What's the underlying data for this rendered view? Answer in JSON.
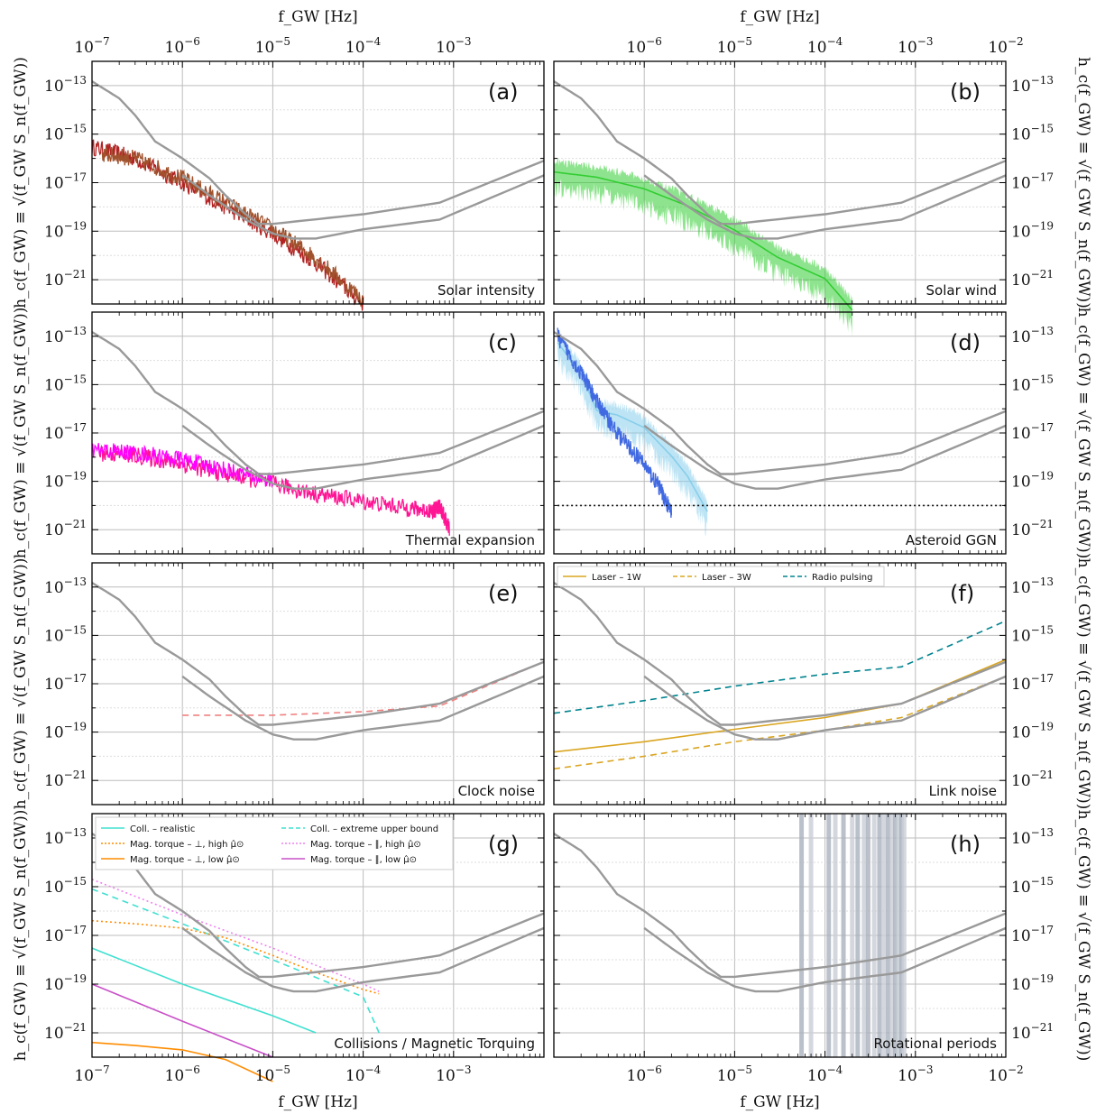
{
  "figure": {
    "top_axis_label": "f_GW [Hz]",
    "bottom_axis_label": "f_GW [Hz]",
    "left_axis_label": "h_c(f_GW) ≡ √(f_GW S_n(f_GW))",
    "right_axis_label": "h_c(f_GW) ≡ √(f_GW S_n(f_GW))",
    "left_xticks": [
      "10^-7",
      "10^-6",
      "10^-5",
      "10^-4",
      "10^-3"
    ],
    "right_xticks": [
      "10^-6",
      "10^-5",
      "10^-4",
      "10^-3",
      "10^-2"
    ],
    "yticks": [
      "10^-13",
      "10^-15",
      "10^-17",
      "10^-19",
      "10^-21"
    ]
  },
  "chart_data": [
    {
      "panel": "(a)",
      "name": "Solar intensity",
      "type": "line",
      "xlim": [
        1e-07,
        0.01
      ],
      "ylim": [
        1e-22,
        1e-12
      ],
      "xscale": "log",
      "yscale": "log",
      "grid": true,
      "series": [
        {
          "color": "#b22222",
          "style": "noisy",
          "x": [
            1e-07,
            3e-07,
            1e-06,
            3e-06,
            1e-05,
            3e-05,
            0.0001
          ],
          "y": [
            3e-16,
            1e-16,
            1e-17,
            1e-18,
            8e-20,
            5e-21,
            1e-22
          ]
        },
        {
          "color": "#a0522d",
          "style": "noisy",
          "x": [
            1.3e-07,
            3e-07,
            1e-06,
            3e-06,
            1e-05,
            3e-05,
            0.0001
          ],
          "y": [
            1.5e-16,
            1e-16,
            1.5e-17,
            1.5e-18,
            1.2e-19,
            8e-21,
            1.5e-22
          ]
        }
      ]
    },
    {
      "panel": "(b)",
      "name": "Solar wind",
      "type": "area",
      "xlim": [
        1e-07,
        0.01
      ],
      "ylim": [
        1e-22,
        1e-12
      ],
      "xscale": "log",
      "yscale": "log",
      "grid": true,
      "series": [
        {
          "color": "#32cd32",
          "style": "band",
          "x": [
            1e-07,
            3e-07,
            1e-06,
            3e-06,
            1e-05,
            3e-05,
            0.0001,
            0.0002
          ],
          "y": [
            5e-17,
            3e-17,
            1e-17,
            2e-18,
            2e-19,
            1.5e-20,
            2e-21,
            1e-22
          ]
        }
      ]
    },
    {
      "panel": "(c)",
      "name": "Thermal expansion",
      "type": "line",
      "xlim": [
        1e-07,
        0.01
      ],
      "ylim": [
        1e-22,
        1e-12
      ],
      "xscale": "log",
      "yscale": "log",
      "grid": true,
      "series": [
        {
          "color": "#ff1493",
          "style": "noisy",
          "x": [
            1.2e-07,
            3e-07,
            1e-06,
            3e-06,
            1e-05,
            3e-05,
            0.0001,
            0.0003,
            0.0006,
            0.0007,
            0.0009
          ],
          "y": [
            1.5e-18,
            1.2e-18,
            5e-19,
            2e-19,
            8e-20,
            3e-20,
            1.5e-20,
            8e-21,
            6e-21,
            1e-20,
            1e-21
          ]
        },
        {
          "color": "#ff00ff",
          "style": "noisy",
          "x": [
            1e-07,
            3e-07,
            1e-06,
            3e-06,
            1e-05
          ],
          "y": [
            2e-18,
            1.5e-18,
            8e-19,
            3e-19,
            1e-19
          ]
        }
      ]
    },
    {
      "panel": "(d)",
      "name": "Asteroid GGN",
      "type": "area",
      "xlim": [
        1e-07,
        0.01
      ],
      "ylim": [
        1e-22,
        1e-12
      ],
      "xscale": "log",
      "yscale": "log",
      "grid": true,
      "series": [
        {
          "color": "#87ceeb",
          "style": "band",
          "x": [
            1.1e-07,
            2e-07,
            3e-07,
            5e-07,
            1e-06,
            2e-06,
            3e-06,
            5e-06
          ],
          "y": [
            1e-13,
            5e-15,
            1.5e-16,
            1e-16,
            3e-17,
            2e-18,
            3e-19,
            1e-20
          ]
        },
        {
          "color": "#4169e1",
          "style": "noisy",
          "x": [
            1.1e-07,
            2e-07,
            3e-07,
            5e-07,
            1e-06,
            1.5e-06,
            2e-06
          ],
          "y": [
            1e-13,
            3e-15,
            2e-16,
            1e-17,
            5e-19,
            5e-20,
            5e-21
          ]
        },
        {
          "color": "#111111",
          "style": "dotted",
          "x": [
            1.1e-07,
            0.01
          ],
          "y": [
            1e-20,
            1e-20
          ]
        }
      ]
    },
    {
      "panel": "(e)",
      "name": "Clock noise",
      "type": "line",
      "xlim": [
        1e-07,
        0.01
      ],
      "ylim": [
        1e-22,
        1e-12
      ],
      "xscale": "log",
      "yscale": "log",
      "grid": true,
      "series": [
        {
          "color": "#f08080",
          "style": "dashed",
          "x": [
            1e-06,
            1e-05,
            0.0001,
            0.0007,
            0.01
          ],
          "y": [
            5e-19,
            5e-19,
            7e-19,
            1.2e-18,
            8e-17
          ]
        }
      ]
    },
    {
      "panel": "(f)",
      "name": "Link noise",
      "type": "line",
      "xlim": [
        1e-07,
        0.01
      ],
      "ylim": [
        1e-22,
        1e-12
      ],
      "xscale": "log",
      "yscale": "log",
      "grid": true,
      "legend": "top",
      "series": [
        {
          "name": "Laser – 1W",
          "color": "#daa520",
          "style": "solid",
          "x": [
            1e-07,
            1e-06,
            1e-05,
            0.0001,
            0.0007,
            0.01
          ],
          "y": [
            1.5e-20,
            4e-20,
            1.3e-19,
            4e-19,
            1.5e-18,
            1e-16
          ]
        },
        {
          "name": "Laser – 3W",
          "color": "#daa520",
          "style": "dashed",
          "x": [
            1e-07,
            1e-06,
            1e-05,
            0.0001,
            0.0007,
            0.01
          ],
          "y": [
            3e-21,
            1e-20,
            4e-20,
            1.2e-19,
            4e-19,
            2e-17
          ]
        },
        {
          "name": "Radio pulsing",
          "color": "#00838f",
          "style": "dashed",
          "x": [
            1e-07,
            1e-06,
            1e-05,
            0.0001,
            0.0007,
            0.01
          ],
          "y": [
            6e-19,
            2e-18,
            8e-18,
            2.5e-17,
            5e-17,
            4e-15
          ]
        }
      ]
    },
    {
      "panel": "(g)",
      "name": "Collisions / Magnetic Torquing",
      "type": "line",
      "xlim": [
        1e-07,
        0.01
      ],
      "ylim": [
        1e-22,
        1e-12
      ],
      "xscale": "log",
      "yscale": "log",
      "grid": true,
      "legend": "top-left",
      "series": [
        {
          "name": "Coll. – realistic",
          "color": "#40e0d0",
          "style": "solid",
          "x": [
            1e-07,
            1e-06,
            1e-05,
            3e-05
          ],
          "y": [
            3e-18,
            1e-19,
            5e-21,
            1e-21
          ]
        },
        {
          "name": "Coll. – extreme upper bound",
          "color": "#40e0d0",
          "style": "dashed",
          "x": [
            1e-07,
            1e-06,
            1e-05,
            0.0001,
            0.00015
          ],
          "y": [
            8e-16,
            3e-17,
            1e-18,
            3e-20,
            1e-21
          ]
        },
        {
          "name": "Mag. torque – ⊥, high μ̂⊙",
          "color": "#ff8c00",
          "style": "dotted",
          "x": [
            1e-07,
            3e-07,
            1e-06,
            3e-06,
            1e-05,
            3e-05,
            0.0001,
            0.00015
          ],
          "y": [
            4e-17,
            3e-17,
            2e-17,
            8e-18,
            1.5e-18,
            3e-19,
            6e-20,
            4e-20
          ]
        },
        {
          "name": "Mag. torque – ∥, high μ̂⊙",
          "color": "#ee82ee",
          "style": "dotted",
          "x": [
            1e-07,
            1e-06,
            1e-05,
            0.0001,
            0.00015
          ],
          "y": [
            2e-15,
            7e-17,
            3e-18,
            1e-19,
            5e-20
          ]
        },
        {
          "name": "Mag. torque – ⊥, low μ̂⊙",
          "color": "#ff8c00",
          "style": "solid",
          "x": [
            1e-07,
            3e-07,
            1e-06,
            3e-06,
            1e-05
          ],
          "y": [
            4e-22,
            3e-22,
            2e-22,
            8e-23,
            1e-23
          ]
        },
        {
          "name": "Mag. torque – ∥, low μ̂⊙",
          "color": "#c850c8",
          "style": "solid",
          "x": [
            1e-07,
            1e-06,
            1e-05
          ],
          "y": [
            1e-19,
            3e-21,
            1e-22
          ]
        }
      ]
    },
    {
      "panel": "(h)",
      "name": "Rotational periods",
      "type": "line",
      "xlim": [
        1e-07,
        0.01
      ],
      "ylim": [
        1e-22,
        1e-12
      ],
      "xscale": "log",
      "yscale": "log",
      "grid": true,
      "vlines": [
        5.5e-05,
        7e-05,
        0.00011,
        0.00013,
        0.00016,
        0.0002,
        0.00023,
        0.00027,
        0.0003,
        0.00035,
        0.0004,
        0.00045,
        0.0005,
        0.00055,
        0.0006,
        0.00065,
        0.0007,
        0.00075
      ]
    }
  ],
  "sensitivity_curves": [
    {
      "color": "#999999",
      "x": [
        1e-07,
        2e-07,
        3e-07,
        5e-07,
        1e-06,
        2e-06,
        3e-06,
        5e-06,
        7e-06,
        1e-05,
        0.0001,
        0.0007,
        0.01
      ],
      "y": [
        1.5e-13,
        3e-14,
        6e-15,
        5e-16,
        1e-16,
        1.5e-17,
        3e-18,
        5e-19,
        2e-19,
        2e-19,
        5e-19,
        1.5e-18,
        8e-17
      ]
    },
    {
      "color": "#999999",
      "x": [
        1e-06,
        2e-06,
        5e-06,
        1e-05,
        1.7e-05,
        3e-05,
        0.0001,
        0.0007,
        0.01
      ],
      "y": [
        2e-17,
        3e-18,
        3e-19,
        8e-20,
        5e-20,
        5e-20,
        1.2e-19,
        3e-19,
        2e-17
      ]
    }
  ]
}
